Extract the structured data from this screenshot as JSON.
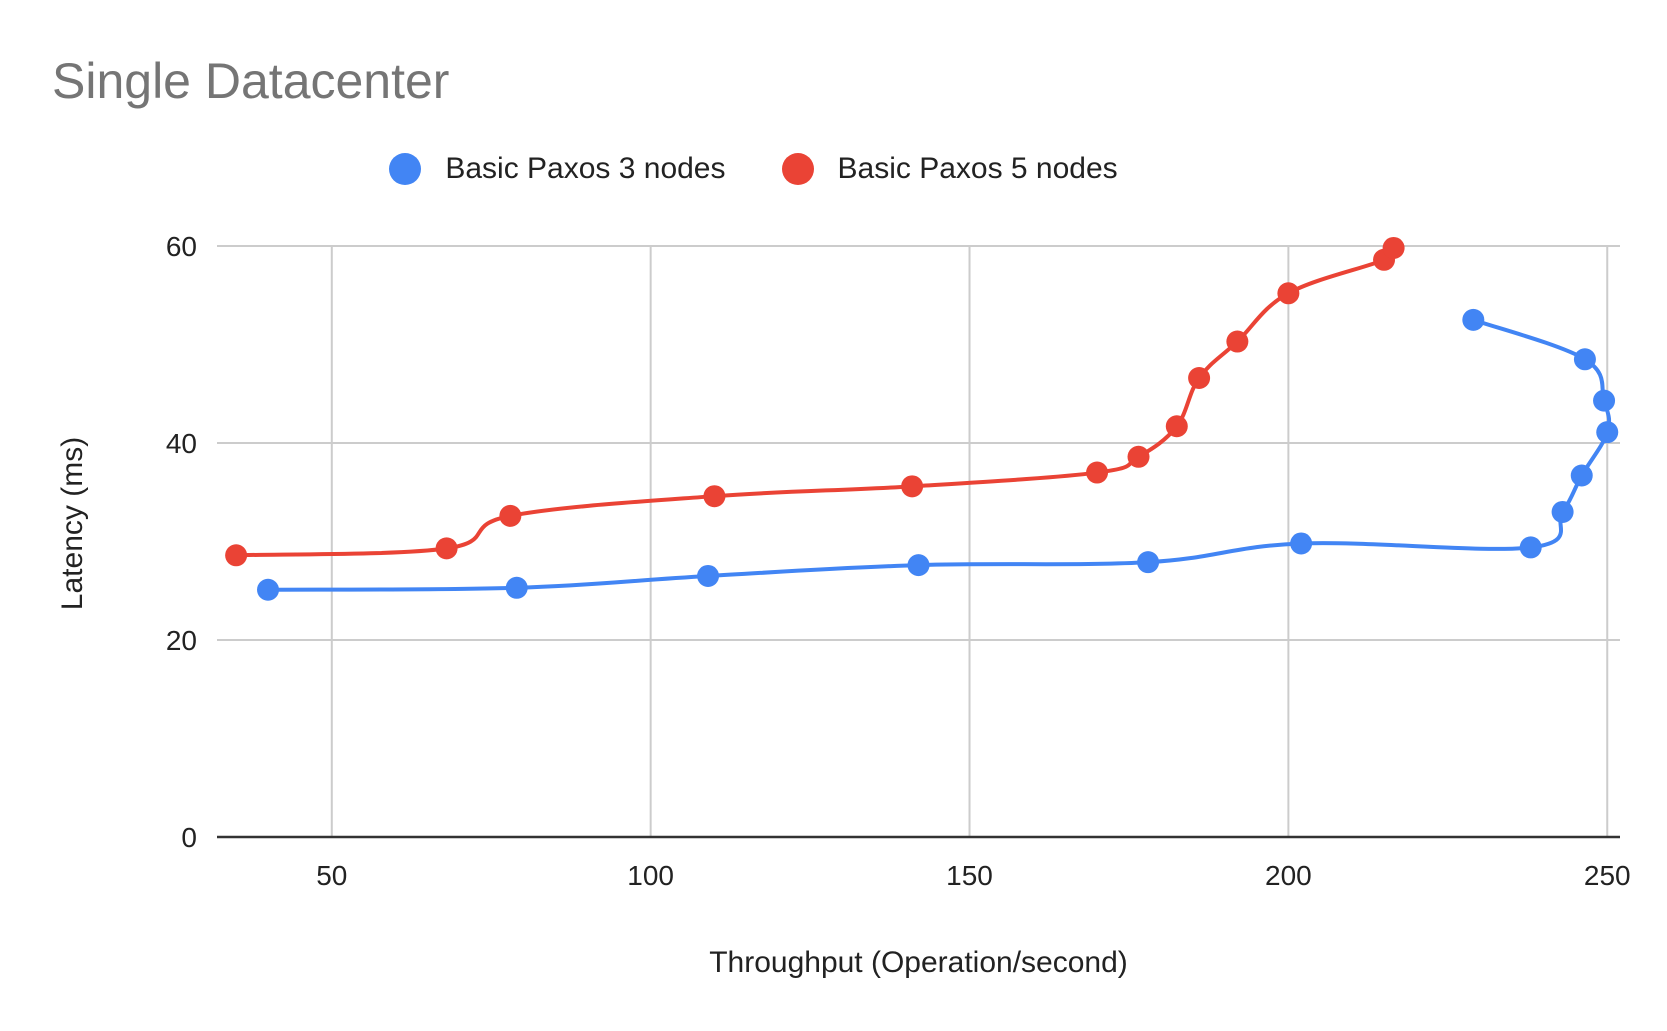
{
  "chart_data": {
    "type": "line",
    "title": "Single Datacenter",
    "xlabel": "Throughput (Operation/second)",
    "ylabel": "Latency (ms)",
    "xlim": [
      32,
      252
    ],
    "ylim": [
      0,
      60
    ],
    "xticks": [
      50,
      100,
      150,
      200,
      250
    ],
    "yticks": [
      0,
      20,
      40,
      60
    ],
    "grid": true,
    "legend_position": "top",
    "smooth": true,
    "series": [
      {
        "name": "Basic Paxos 3 nodes",
        "color": "#4285f4",
        "points": [
          {
            "x": 40,
            "y": 25.1
          },
          {
            "x": 79,
            "y": 25.3
          },
          {
            "x": 109,
            "y": 26.5
          },
          {
            "x": 142,
            "y": 27.6
          },
          {
            "x": 178,
            "y": 27.9
          },
          {
            "x": 202,
            "y": 29.8
          },
          {
            "x": 238,
            "y": 29.4
          },
          {
            "x": 243,
            "y": 33.0
          },
          {
            "x": 246,
            "y": 36.7
          },
          {
            "x": 250,
            "y": 41.1
          },
          {
            "x": 249.5,
            "y": 44.3
          },
          {
            "x": 246.5,
            "y": 48.5
          },
          {
            "x": 229,
            "y": 52.5
          }
        ]
      },
      {
        "name": "Basic Paxos 5 nodes",
        "color": "#ea4335",
        "points": [
          {
            "x": 35,
            "y": 28.6
          },
          {
            "x": 68,
            "y": 29.3
          },
          {
            "x": 78,
            "y": 32.6
          },
          {
            "x": 110,
            "y": 34.6
          },
          {
            "x": 141,
            "y": 35.6
          },
          {
            "x": 170,
            "y": 37.0
          },
          {
            "x": 176.5,
            "y": 38.6
          },
          {
            "x": 182.5,
            "y": 41.7
          },
          {
            "x": 186,
            "y": 46.6
          },
          {
            "x": 192,
            "y": 50.3
          },
          {
            "x": 200,
            "y": 55.2
          },
          {
            "x": 215,
            "y": 58.6
          },
          {
            "x": 216.5,
            "y": 59.8
          }
        ]
      }
    ]
  }
}
